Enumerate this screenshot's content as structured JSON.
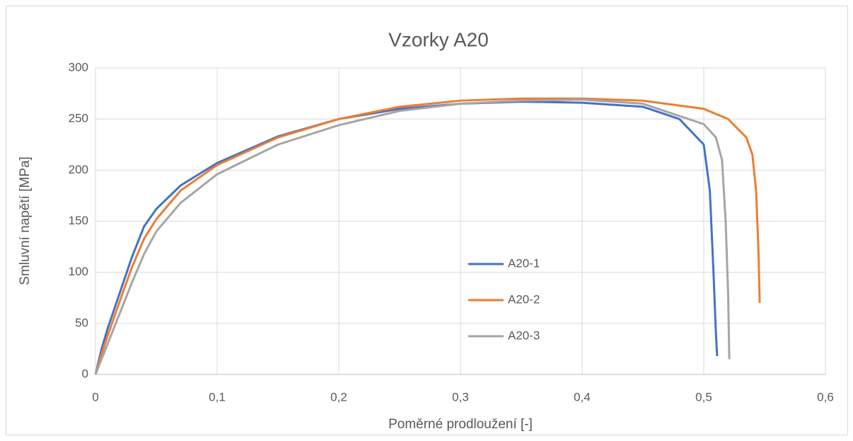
{
  "chart_data": {
    "type": "line",
    "title": "Vzorky A20",
    "x_label": "Poměrné prodloužení [-]",
    "y_label": "Smluvní napětí [MPa]",
    "xlim": [
      0,
      0.6
    ],
    "ylim": [
      0,
      300
    ],
    "xticks": [
      0,
      {
        "value": 0.1,
        "label": "0,1"
      },
      {
        "value": 0.2,
        "label": "0,2"
      },
      {
        "value": 0.3,
        "label": "0,3"
      },
      {
        "value": 0.4,
        "label": "0,4"
      },
      {
        "value": 0.5,
        "label": "0,5"
      },
      {
        "value": 0.6,
        "label": "0,6"
      }
    ],
    "yticks": [
      0,
      50,
      100,
      150,
      200,
      250,
      300
    ],
    "grid": true,
    "legend": "center",
    "series": [
      {
        "name": "A20-1",
        "color": "#4472c4",
        "x": [
          0,
          0.005,
          0.01,
          0.02,
          0.03,
          0.04,
          0.05,
          0.07,
          0.1,
          0.15,
          0.2,
          0.25,
          0.3,
          0.35,
          0.4,
          0.45,
          0.48,
          0.5,
          0.505,
          0.508,
          0.51,
          0.511
        ],
        "values": [
          0,
          25,
          45,
          80,
          115,
          145,
          162,
          185,
          207,
          233,
          250,
          260,
          265,
          267,
          266,
          262,
          250,
          225,
          180,
          100,
          40,
          18
        ]
      },
      {
        "name": "A20-2",
        "color": "#ed7d31",
        "x": [
          0,
          0.005,
          0.01,
          0.02,
          0.03,
          0.04,
          0.05,
          0.07,
          0.1,
          0.15,
          0.2,
          0.25,
          0.3,
          0.35,
          0.4,
          0.45,
          0.5,
          0.52,
          0.535,
          0.54,
          0.543,
          0.545,
          0.546
        ],
        "values": [
          0,
          20,
          38,
          72,
          105,
          133,
          152,
          180,
          205,
          232,
          250,
          262,
          268,
          270,
          270,
          268,
          260,
          250,
          232,
          215,
          180,
          120,
          70
        ]
      },
      {
        "name": "A20-3",
        "color": "#a5a5a5",
        "x": [
          0,
          0.005,
          0.01,
          0.02,
          0.03,
          0.04,
          0.05,
          0.07,
          0.1,
          0.15,
          0.2,
          0.25,
          0.3,
          0.35,
          0.4,
          0.45,
          0.5,
          0.51,
          0.515,
          0.518,
          0.52,
          0.521
        ],
        "values": [
          0,
          15,
          30,
          60,
          90,
          118,
          140,
          168,
          196,
          225,
          244,
          258,
          265,
          268,
          269,
          265,
          245,
          232,
          210,
          150,
          80,
          15
        ]
      }
    ]
  }
}
